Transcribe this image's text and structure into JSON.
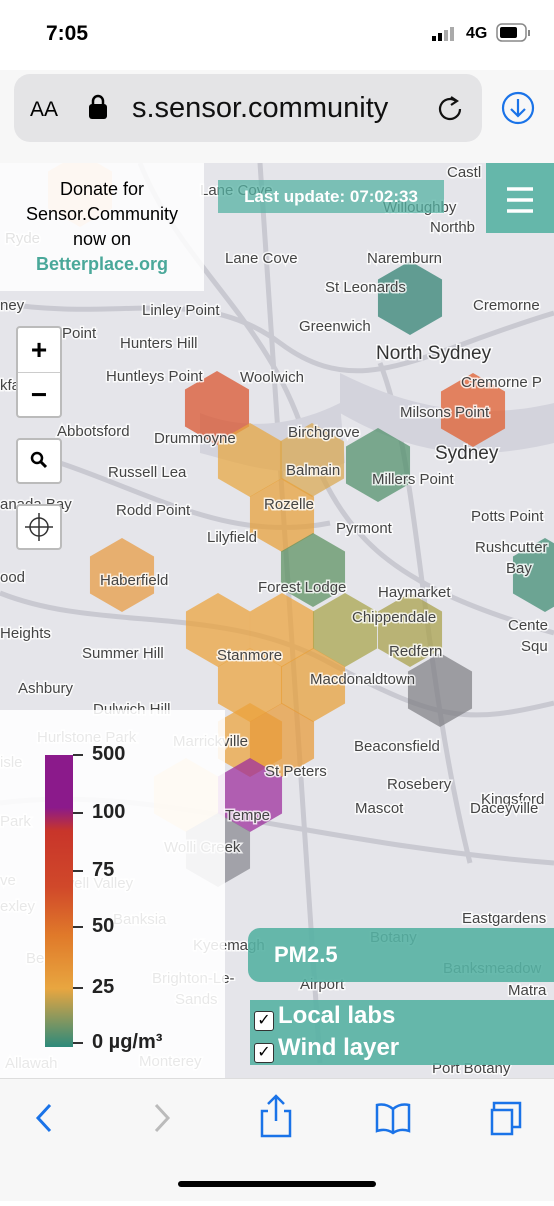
{
  "status_bar": {
    "time": "7:05",
    "network": "4G"
  },
  "browser": {
    "text_size": "AA",
    "url": "s.sensor.community"
  },
  "donate": {
    "lines": [
      "Donate for",
      "Sensor.Community",
      "now on"
    ],
    "link": "Betterplace.org"
  },
  "last_update": "Last update: 07:02:33",
  "zoom": {
    "in": "+",
    "out": "−"
  },
  "map_labels": [
    "Castl",
    "Lane Cove",
    "Willoughby",
    "Ryde",
    "Northb",
    "Naremburn",
    "Lane Cove",
    "St Leonards",
    "Cremorne",
    "ney",
    "Linley Point",
    "Greenwich",
    "Point",
    "Hunters Hill",
    "North Sydney",
    "Huntleys Point",
    "Woolwich",
    "Cremorne P",
    "kfa",
    "Abbotsford",
    "Drummoyne",
    "Birchgrove",
    "Milsons Point",
    "Sydney",
    "Russell Lea",
    "Balmain",
    "Millers Point",
    "Rodd Point",
    "Rozelle",
    "Potts Point",
    "anada Bay",
    "Pyrmont",
    "Lilyfield",
    "Rushcutter",
    "Bay",
    "ood",
    "Haberfield",
    "Forest Lodge",
    "Haymarket",
    "Heights",
    "Chippendale",
    "Cente",
    "Summer Hill",
    "Stanmore",
    "Redfern",
    "Squ",
    "Ashbury",
    "Macdonaldtown",
    "Dulwich Hill",
    "Hurlstone Park",
    "Marrickville",
    "Beaconsfield",
    "isle",
    "St Peters",
    "Rosebery",
    "Kingsford",
    "Park",
    "Tempe",
    "Mascot",
    "Daceyville",
    "Wolli Creek",
    "ve",
    "dwell Valley",
    "exley",
    "Banksia",
    "Eastgardens",
    "Be",
    "Kyeemagh",
    "Botany",
    "Banksmeadow",
    "Brighton-Le-",
    "Sands",
    "Airport",
    "Matra",
    "Allawah",
    "Monterey",
    "Port Botany"
  ],
  "legend": {
    "labels": [
      "500",
      "100",
      "75",
      "50",
      "25",
      "0 µg/m³"
    ]
  },
  "pollutant": "PM2.5",
  "toggles": [
    "Local labs",
    "Wind layer"
  ]
}
